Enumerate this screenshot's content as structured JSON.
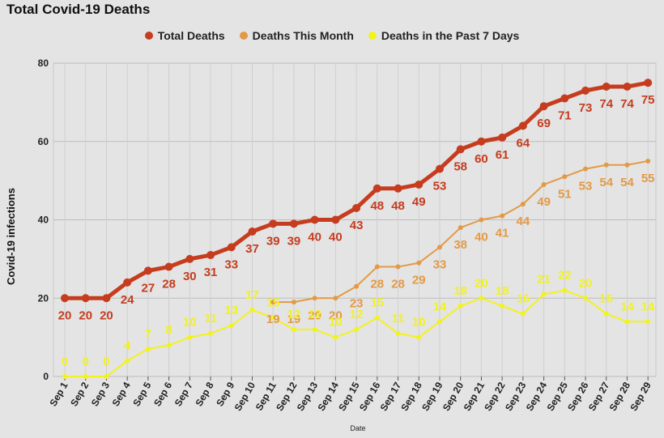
{
  "chart_data": {
    "type": "line",
    "title": "Total Covid-19 Deaths",
    "xlabel": "Date",
    "ylabel": "Covid-19 infections",
    "ylim": [
      0,
      80
    ],
    "yticks": [
      0,
      20,
      40,
      60,
      80
    ],
    "grid": true,
    "legend_position": "top",
    "categories": [
      "Sep 1",
      "Sep 2",
      "Sep 3",
      "Sep 4",
      "Sep 5",
      "Sep 6",
      "Sep 7",
      "Sep 8",
      "Sep 9",
      "Sep 10",
      "Sep 11",
      "Sep 12",
      "Sep 13",
      "Sep 14",
      "Sep 15",
      "Sep 16",
      "Sep 17",
      "Sep 18",
      "Sep 19",
      "Sep 20",
      "Sep 21",
      "Sep 22",
      "Sep 23",
      "Sep 24",
      "Sep 25",
      "Sep 26",
      "Sep 27",
      "Sep 28",
      "Sep 29"
    ],
    "series": [
      {
        "name": "Total Deaths",
        "color": "#c63c1e",
        "values": [
          20,
          20,
          20,
          24,
          27,
          28,
          30,
          31,
          33,
          37,
          39,
          39,
          40,
          40,
          43,
          48,
          48,
          49,
          53,
          58,
          60,
          61,
          64,
          69,
          71,
          73,
          74,
          74,
          75
        ]
      },
      {
        "name": "Deaths This Month",
        "color": "#e39a45",
        "values": [
          null,
          null,
          null,
          null,
          null,
          null,
          null,
          null,
          null,
          null,
          19,
          19,
          20,
          20,
          23,
          28,
          28,
          29,
          33,
          38,
          40,
          41,
          44,
          49,
          51,
          53,
          54,
          54,
          55
        ]
      },
      {
        "name": "Deaths in the Past 7 Days",
        "color": "#f2f21f",
        "values": [
          0,
          0,
          0,
          4,
          7,
          8,
          10,
          11,
          13,
          17,
          15,
          12,
          12,
          10,
          12,
          15,
          11,
          10,
          14,
          18,
          20,
          18,
          16,
          21,
          22,
          20,
          16,
          14,
          14
        ]
      }
    ]
  }
}
